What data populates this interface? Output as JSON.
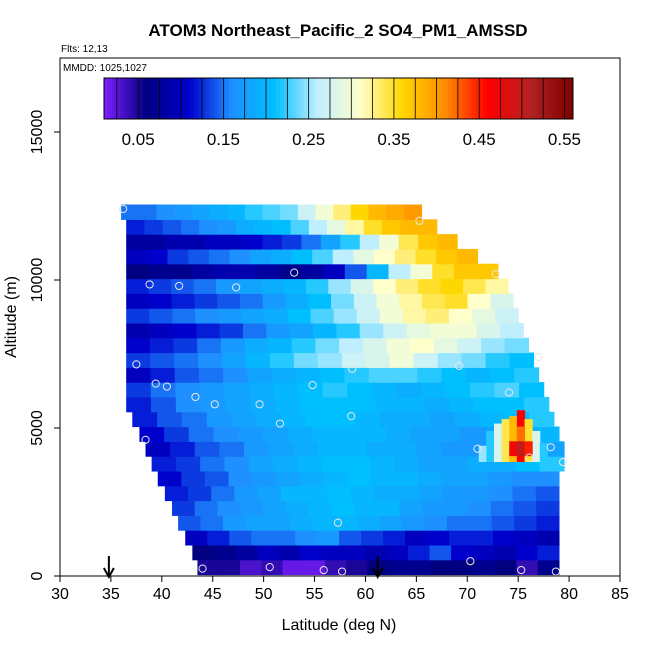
{
  "chart_data": {
    "type": "heatmap",
    "title": "ATOM3 Northeast_Pacific_2 SO4_PM1_AMSSD",
    "flights_label": "Flts: 12,13",
    "mmdd_label": "MMDD: 1025,1027",
    "xlabel": "Latitude (deg N)",
    "ylabel": "Altitude (m)",
    "xlim": [
      30,
      85
    ],
    "ylim": [
      0,
      17500
    ],
    "x_ticks": [
      30,
      35,
      40,
      45,
      50,
      55,
      60,
      65,
      70,
      75,
      80,
      85
    ],
    "y_ticks": [
      0,
      5000,
      10000,
      15000
    ],
    "colorbar": {
      "range": [
        0.01,
        0.56
      ],
      "tick_values": [
        0.05,
        0.15,
        0.25,
        0.35,
        0.45,
        0.55
      ],
      "tick_labels": [
        "0.05",
        "0.15",
        "0.25",
        "0.35",
        "0.45",
        "0.55"
      ],
      "bin_edges": [
        0.01,
        0.1,
        0.2,
        0.3,
        0.4,
        0.5,
        0.56
      ],
      "colors": [
        "#7f1fff",
        "#000080",
        "#0000cd",
        "#1e90ff",
        "#00bfff",
        "#bfefff",
        "#ffffcc",
        "#ffd700",
        "#ff8c00",
        "#ff0000",
        "#b22222",
        "#7f0000"
      ]
    },
    "bands": [
      {
        "alt": 300,
        "lat_min": 43.5,
        "lat_max": 79,
        "values": [
          0.05,
          0.05,
          0.03,
          0.04,
          0.02,
          0.02,
          0.04,
          0.05,
          0.06,
          0.07,
          0.07,
          0.06,
          0.06,
          0.07,
          0.06,
          0.04,
          0.07
        ]
      },
      {
        "alt": 800,
        "lat_min": 43.0,
        "lat_max": 79,
        "values": [
          0.06,
          0.07,
          0.08,
          0.1,
          0.09,
          0.11,
          0.1,
          0.1,
          0.09,
          0.1,
          0.12,
          0.14,
          0.11,
          0.1,
          0.09,
          0.11,
          0.12
        ]
      },
      {
        "alt": 1300,
        "lat_min": 42.3,
        "lat_max": 79,
        "values": [
          0.1,
          0.12,
          0.14,
          0.15,
          0.15,
          0.16,
          0.17,
          0.14,
          0.13,
          0.12,
          0.1,
          0.11,
          0.12,
          0.12,
          0.11,
          0.1,
          0.09
        ]
      },
      {
        "alt": 1800,
        "lat_min": 41.6,
        "lat_max": 79,
        "values": [
          0.14,
          0.15,
          0.17,
          0.18,
          0.18,
          0.19,
          0.2,
          0.2,
          0.19,
          0.18,
          0.17,
          0.16,
          0.15,
          0.15,
          0.14,
          0.13,
          0.12
        ]
      },
      {
        "alt": 2300,
        "lat_min": 41.0,
        "lat_max": 79,
        "values": [
          0.13,
          0.15,
          0.16,
          0.17,
          0.18,
          0.19,
          0.2,
          0.21,
          0.2,
          0.2,
          0.18,
          0.17,
          0.17,
          0.16,
          0.15,
          0.14,
          0.13
        ]
      },
      {
        "alt": 2800,
        "lat_min": 40.3,
        "lat_max": 79,
        "values": [
          0.12,
          0.13,
          0.15,
          0.17,
          0.18,
          0.2,
          0.2,
          0.21,
          0.2,
          0.19,
          0.19,
          0.18,
          0.17,
          0.17,
          0.16,
          0.15,
          0.14
        ]
      },
      {
        "alt": 3300,
        "lat_min": 39.6,
        "lat_max": 79,
        "values": [
          0.11,
          0.13,
          0.14,
          0.16,
          0.17,
          0.18,
          0.19,
          0.2,
          0.21,
          0.2,
          0.2,
          0.19,
          0.18,
          0.18,
          0.17,
          0.16,
          0.16
        ]
      },
      {
        "alt": 3800,
        "lat_min": 39.0,
        "lat_max": 79.5,
        "values": [
          0.12,
          0.13,
          0.15,
          0.16,
          0.18,
          0.19,
          0.2,
          0.21,
          0.21,
          0.2,
          0.19,
          0.18,
          0.18,
          0.19,
          0.19,
          0.21,
          0.22
        ]
      },
      {
        "alt": 4300,
        "lat_min": 38.4,
        "lat_max": 79.5,
        "values": [
          0.1,
          0.12,
          0.14,
          0.15,
          0.17,
          0.18,
          0.19,
          0.2,
          0.2,
          0.19,
          0.19,
          0.18,
          0.17,
          0.17,
          0.16,
          0.17,
          0.18
        ]
      },
      {
        "alt": 4800,
        "lat_min": 37.8,
        "lat_max": 79,
        "values": [
          0.11,
          0.13,
          0.15,
          0.16,
          0.17,
          0.18,
          0.19,
          0.2,
          0.2,
          0.2,
          0.19,
          0.18,
          0.18,
          0.17,
          0.18,
          0.19,
          0.2
        ]
      },
      {
        "alt": 5300,
        "lat_min": 37.1,
        "lat_max": 78.5,
        "values": [
          0.12,
          0.14,
          0.15,
          0.17,
          0.18,
          0.19,
          0.2,
          0.21,
          0.21,
          0.2,
          0.19,
          0.19,
          0.18,
          0.19,
          0.2,
          0.21,
          0.22
        ]
      },
      {
        "alt": 5800,
        "lat_min": 36.5,
        "lat_max": 78,
        "values": [
          0.12,
          0.14,
          0.16,
          0.17,
          0.18,
          0.19,
          0.2,
          0.21,
          0.21,
          0.21,
          0.2,
          0.2,
          0.19,
          0.2,
          0.21,
          0.21,
          0.22
        ]
      },
      {
        "alt": 6300,
        "lat_min": 36.5,
        "lat_max": 77.5,
        "values": [
          0.13,
          0.15,
          0.16,
          0.17,
          0.18,
          0.19,
          0.2,
          0.21,
          0.22,
          0.21,
          0.2,
          0.19,
          0.2,
          0.21,
          0.22,
          0.23,
          0.21
        ]
      },
      {
        "alt": 6800,
        "lat_min": 36.5,
        "lat_max": 77,
        "values": [
          0.1,
          0.12,
          0.14,
          0.15,
          0.16,
          0.18,
          0.19,
          0.2,
          0.21,
          0.22,
          0.23,
          0.23,
          0.22,
          0.21,
          0.2,
          0.21,
          0.22
        ]
      },
      {
        "alt": 7300,
        "lat_min": 36.5,
        "lat_max": 76.5,
        "values": [
          0.13,
          0.14,
          0.15,
          0.16,
          0.18,
          0.2,
          0.22,
          0.24,
          0.25,
          0.27,
          0.28,
          0.3,
          0.27,
          0.25,
          0.24,
          0.22,
          0.21
        ]
      },
      {
        "alt": 7800,
        "lat_min": 36.5,
        "lat_max": 76,
        "values": [
          0.11,
          0.12,
          0.13,
          0.15,
          0.17,
          0.19,
          0.2,
          0.22,
          0.24,
          0.26,
          0.28,
          0.3,
          0.31,
          0.29,
          0.27,
          0.25,
          0.24
        ]
      },
      {
        "alt": 8300,
        "lat_min": 36.5,
        "lat_max": 75.5,
        "values": [
          0.09,
          0.1,
          0.11,
          0.12,
          0.13,
          0.15,
          0.17,
          0.18,
          0.2,
          0.22,
          0.25,
          0.27,
          0.29,
          0.3,
          0.3,
          0.28,
          0.26
        ]
      },
      {
        "alt": 8800,
        "lat_min": 36.5,
        "lat_max": 75,
        "values": [
          0.13,
          0.14,
          0.15,
          0.16,
          0.17,
          0.18,
          0.19,
          0.21,
          0.23,
          0.25,
          0.27,
          0.3,
          0.32,
          0.33,
          0.31,
          0.29,
          0.27
        ]
      },
      {
        "alt": 9300,
        "lat_min": 36.5,
        "lat_max": 74.5,
        "values": [
          0.1,
          0.11,
          0.12,
          0.13,
          0.14,
          0.15,
          0.17,
          0.19,
          0.21,
          0.24,
          0.27,
          0.3,
          0.32,
          0.34,
          0.35,
          0.31,
          0.28
        ]
      },
      {
        "alt": 9800,
        "lat_min": 36.5,
        "lat_max": 74,
        "values": [
          0.12,
          0.13,
          0.14,
          0.15,
          0.17,
          0.18,
          0.19,
          0.2,
          0.22,
          0.25,
          0.28,
          0.31,
          0.33,
          0.35,
          0.36,
          0.34,
          0.32
        ]
      },
      {
        "alt": 10300,
        "lat_min": 36.5,
        "lat_max": 73,
        "values": [
          0.06,
          0.07,
          0.07,
          0.08,
          0.09,
          0.09,
          0.08,
          0.07,
          0.08,
          0.1,
          0.14,
          0.2,
          0.26,
          0.3,
          0.35,
          0.37,
          0.37
        ]
      },
      {
        "alt": 10800,
        "lat_min": 36.5,
        "lat_max": 71,
        "values": [
          0.1,
          0.11,
          0.13,
          0.14,
          0.15,
          0.16,
          0.18,
          0.19,
          0.21,
          0.23,
          0.26,
          0.29,
          0.31,
          0.33,
          0.35,
          0.37,
          0.38
        ]
      },
      {
        "alt": 11300,
        "lat_min": 36.5,
        "lat_max": 69,
        "values": [
          0.08,
          0.08,
          0.09,
          0.09,
          0.1,
          0.1,
          0.11,
          0.12,
          0.13,
          0.15,
          0.18,
          0.22,
          0.26,
          0.3,
          0.34,
          0.37,
          0.38
        ]
      },
      {
        "alt": 11800,
        "lat_min": 36.5,
        "lat_max": 67,
        "values": [
          0.12,
          0.13,
          0.14,
          0.15,
          0.16,
          0.17,
          0.19,
          0.2,
          0.21,
          0.23,
          0.26,
          0.29,
          0.32,
          0.35,
          0.37,
          0.38,
          0.38
        ]
      },
      {
        "alt": 12300,
        "lat_min": 36.0,
        "lat_max": 65.5,
        "values": [
          0.15,
          0.15,
          0.16,
          0.17,
          0.18,
          0.19,
          0.2,
          0.22,
          0.23,
          0.24,
          0.27,
          0.3,
          0.33,
          0.36,
          0.38,
          0.39,
          0.4
        ]
      }
    ],
    "hotspot": {
      "columns": [
        {
          "lat": 71.5,
          "top_alt": 4400,
          "value": 0.25
        },
        {
          "lat": 72.25,
          "top_alt": 4900,
          "value": 0.22
        },
        {
          "lat": 73.0,
          "top_alt": 5150,
          "value": 0.28
        },
        {
          "lat": 73.75,
          "top_alt": 5300,
          "value": 0.34
        },
        {
          "lat": 74.5,
          "top_alt": 5400,
          "value": 0.38
        },
        {
          "lat": 75.25,
          "top_alt": 5600,
          "value": 0.46
        },
        {
          "lat": 76.0,
          "top_alt": 5300,
          "value": 0.35
        },
        {
          "lat": 76.75,
          "top_alt": 4900,
          "value": 0.28
        },
        {
          "lat": 77.5,
          "top_alt": 4500,
          "value": 0.22
        }
      ],
      "core": [
        {
          "lat": 74.5,
          "alt": 4300,
          "value": 0.47
        },
        {
          "lat": 75.25,
          "alt": 4300,
          "value": 0.5
        },
        {
          "lat": 76.0,
          "alt": 4300,
          "value": 0.45
        },
        {
          "lat": 75.25,
          "alt": 4800,
          "value": 0.42
        }
      ]
    },
    "markers": [
      {
        "lat": 36.2,
        "alt": 12400
      },
      {
        "lat": 65.3,
        "alt": 12000
      },
      {
        "lat": 72.8,
        "alt": 10200
      },
      {
        "lat": 53.0,
        "alt": 10250
      },
      {
        "lat": 38.8,
        "alt": 9850
      },
      {
        "lat": 41.7,
        "alt": 9800
      },
      {
        "lat": 47.3,
        "alt": 9750
      },
      {
        "lat": 37.5,
        "alt": 7150
      },
      {
        "lat": 69.2,
        "alt": 7100
      },
      {
        "lat": 58.7,
        "alt": 7000
      },
      {
        "lat": 77.0,
        "alt": 7400
      },
      {
        "lat": 39.4,
        "alt": 6500
      },
      {
        "lat": 40.5,
        "alt": 6400
      },
      {
        "lat": 54.8,
        "alt": 6450
      },
      {
        "lat": 43.3,
        "alt": 6050
      },
      {
        "lat": 74.1,
        "alt": 6200
      },
      {
        "lat": 45.2,
        "alt": 5800
      },
      {
        "lat": 49.6,
        "alt": 5800
      },
      {
        "lat": 51.6,
        "alt": 5150
      },
      {
        "lat": 58.6,
        "alt": 5400
      },
      {
        "lat": 38.4,
        "alt": 4600
      },
      {
        "lat": 71.0,
        "alt": 4300
      },
      {
        "lat": 76.1,
        "alt": 4000
      },
      {
        "lat": 78.2,
        "alt": 4350
      },
      {
        "lat": 79.4,
        "alt": 3850
      },
      {
        "lat": 57.3,
        "alt": 1800
      },
      {
        "lat": 70.3,
        "alt": 500
      },
      {
        "lat": 44.0,
        "alt": 250
      },
      {
        "lat": 50.6,
        "alt": 300
      },
      {
        "lat": 55.9,
        "alt": 200
      },
      {
        "lat": 57.7,
        "alt": 150
      },
      {
        "lat": 75.3,
        "alt": 200
      },
      {
        "lat": 78.7,
        "alt": 150
      }
    ],
    "arrows": [
      {
        "lat": 34.8
      },
      {
        "lat": 61.2
      }
    ]
  }
}
